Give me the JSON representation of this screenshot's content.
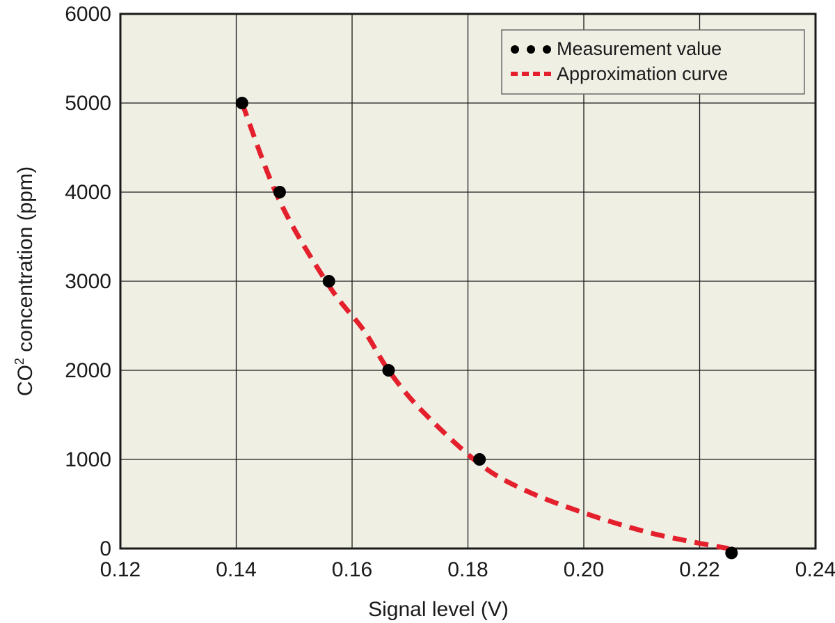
{
  "chart_data": {
    "type": "scatter",
    "title": "",
    "xlabel": "Signal level (V)",
    "ylabel_main": "CO",
    "ylabel_sup": "2",
    "ylabel_rest": " concentration (ppm)",
    "xlim": [
      0.12,
      0.24
    ],
    "ylim": [
      0,
      6000
    ],
    "x_ticks": [
      0.12,
      0.14,
      0.16,
      0.18,
      0.2,
      0.22,
      0.24
    ],
    "x_tick_labels": [
      "0.12",
      "0.14",
      "0.16",
      "0.18",
      "0.20",
      "0.22",
      "0.24"
    ],
    "y_ticks": [
      0,
      1000,
      2000,
      3000,
      4000,
      5000,
      6000
    ],
    "y_tick_labels": [
      "0",
      "1000",
      "2000",
      "3000",
      "4000",
      "5000",
      "6000"
    ],
    "grid": true,
    "legend_position": "top-right",
    "series": [
      {
        "name": "Measurement value",
        "kind": "points",
        "color": "#000000",
        "x": [
          0.141,
          0.1475,
          0.156,
          0.1663,
          0.182,
          0.2255
        ],
        "y": [
          5000,
          4000,
          3000,
          2000,
          1000,
          -50
        ]
      },
      {
        "name": "Approximation curve",
        "kind": "dashed-line",
        "color": "#e3202c",
        "x": [
          0.141,
          0.1475,
          0.156,
          0.162,
          0.1663,
          0.172,
          0.182,
          0.19,
          0.2,
          0.21,
          0.2175,
          0.225
        ],
        "y": [
          5000,
          3900,
          2950,
          2450,
          2000,
          1550,
          950,
          650,
          400,
          200,
          90,
          0
        ]
      }
    ],
    "colors": {
      "plot_background": "#f0efe4",
      "grid": "#1a1a1a",
      "marker": "#000000",
      "curve": "#e3202c"
    }
  }
}
